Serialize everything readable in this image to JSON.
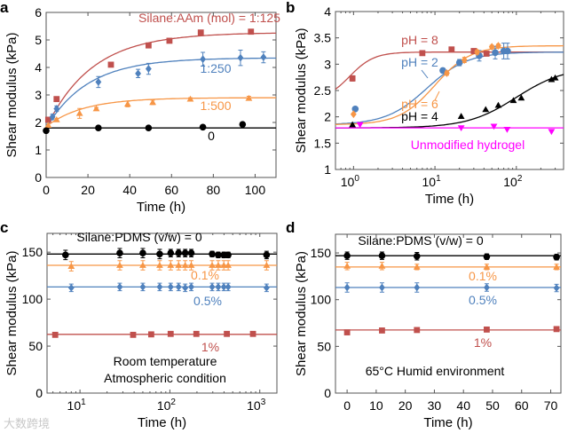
{
  "watermark": "大数跨境",
  "chart_data": [
    {
      "panel": "a",
      "type": "scatter+fit",
      "xlabel": "Time (h)",
      "ylabel": "Shear modulus (kPa)",
      "xscale": "linear",
      "xlim": [
        0,
        110
      ],
      "ylim": [
        0,
        6
      ],
      "xticks": [
        0,
        20,
        40,
        60,
        80,
        100
      ],
      "xticklabels": [
        "0",
        "20",
        "40",
        "60",
        "80",
        "100"
      ],
      "yticks": [
        0,
        1,
        2,
        3,
        4,
        5,
        6
      ],
      "yticklabels": [
        "0",
        "1",
        "2",
        "3",
        "4",
        "5",
        "6"
      ],
      "annotations": [
        {
          "text": "Silane:AAm (mol) = 1:125",
          "color": "#c0504d"
        },
        {
          "text": "1:250",
          "color": "#4f81bd"
        },
        {
          "text": "1:500",
          "color": "#f79646"
        },
        {
          "text": "0",
          "color": "#000000"
        }
      ],
      "series": [
        {
          "name": "1:125",
          "color": "#c0504d",
          "marker": "square",
          "points": [
            [
              1,
              2.1,
              0
            ],
            [
              5,
              2.85,
              0
            ],
            [
              31,
              4.1,
              0
            ],
            [
              49,
              4.8,
              0
            ],
            [
              59,
              4.97,
              0.08
            ],
            [
              74,
              5.27,
              0
            ],
            [
              98,
              5.3,
              0
            ]
          ],
          "fit": {
            "model": "exp_rise",
            "y0": 1.8,
            "y1": 5.27,
            "tau": 22
          }
        },
        {
          "name": "1:250",
          "color": "#4f81bd",
          "marker": "diamond",
          "points": [
            [
              3,
              2.2,
              0.1
            ],
            [
              5,
              2.5,
              0.1
            ],
            [
              25,
              3.47,
              0.2
            ],
            [
              44,
              3.78,
              0.15
            ],
            [
              49,
              3.95,
              0.2
            ],
            [
              75,
              4.3,
              0.25
            ],
            [
              93,
              4.35,
              0.28
            ],
            [
              104,
              4.37,
              0.2
            ]
          ],
          "fit": {
            "model": "exp_rise",
            "y0": 1.8,
            "y1": 4.35,
            "tau": 20
          }
        },
        {
          "name": "1:500",
          "color": "#f79646",
          "marker": "triangle",
          "points": [
            [
              1,
              1.9,
              0
            ],
            [
              5,
              2.1,
              0.05
            ],
            [
              16,
              2.33,
              0.18
            ],
            [
              24,
              2.5,
              0.05
            ],
            [
              39,
              2.67,
              0.1
            ],
            [
              51,
              2.73,
              0.08
            ],
            [
              69,
              2.85,
              0.05
            ],
            [
              97,
              2.88,
              0.07
            ]
          ],
          "fit": {
            "model": "exp_rise",
            "y0": 1.85,
            "y1": 2.9,
            "tau": 18
          }
        },
        {
          "name": "0",
          "color": "#000000",
          "marker": "circle",
          "points": [
            [
              0,
              1.7,
              0
            ],
            [
              25,
              1.8,
              0
            ],
            [
              49,
              1.8,
              0
            ],
            [
              75,
              1.83,
              0
            ],
            [
              94,
              1.93,
              0
            ]
          ],
          "fit": {
            "model": "constant",
            "y": 1.8
          }
        }
      ]
    },
    {
      "panel": "b",
      "type": "scatter+fit",
      "xlabel": "Time (h)",
      "ylabel": "Shear modulus (kPa)",
      "xscale": "log",
      "xlim": [
        0.6,
        380
      ],
      "ylim": [
        1,
        4
      ],
      "xticks": [
        1,
        10,
        100
      ],
      "xticklabels": [
        "10",
        "10",
        "10"
      ],
      "xtickexponents": [
        "0",
        "1",
        "2"
      ],
      "yticks": [
        1,
        1.5,
        2,
        2.5,
        3,
        3.5,
        4
      ],
      "yticklabels": [
        "1",
        "1.5",
        "2",
        "2.5",
        "3",
        "3.5",
        "4"
      ],
      "annotations": [
        {
          "text": "pH = 8",
          "color": "#c0504d"
        },
        {
          "text": "pH = 2",
          "color": "#4f81bd"
        },
        {
          "text": "pH = 6",
          "color": "#f79646"
        },
        {
          "text": "pH = 4",
          "color": "#000000"
        },
        {
          "text": "Unmodified hydrogel",
          "color": "#ff00ff"
        }
      ],
      "series": [
        {
          "name": "pH = 8",
          "color": "#c0504d",
          "marker": "square",
          "points": [
            [
              0.97,
              2.73,
              0.05
            ],
            [
              7,
              3.21,
              0
            ],
            [
              16,
              3.28,
              0
            ],
            [
              30,
              3.25,
              0
            ],
            [
              43,
              3.2,
              0
            ]
          ],
          "fit": {
            "model": "logistic_log10",
            "y0": 2.3,
            "y1": 3.23,
            "mid": -0.05,
            "width": 0.15
          }
        },
        {
          "name": "pH = 2",
          "color": "#4f81bd",
          "marker": "circle",
          "points": [
            [
              1.05,
              2.15,
              0
            ],
            [
              12.5,
              2.88,
              0.04
            ],
            [
              20,
              3.03,
              0.06
            ],
            [
              35,
              3.16,
              0.1
            ],
            [
              55,
              3.22,
              0.12
            ],
            [
              70,
              3.25,
              0.15
            ],
            [
              78,
              3.25,
              0.15
            ]
          ],
          "fit": {
            "model": "logistic_log10",
            "y0": 1.85,
            "y1": 3.23,
            "mid": 0.9,
            "width": 0.25
          }
        },
        {
          "name": "pH = 6",
          "color": "#f79646",
          "marker": "diamond",
          "points": [
            [
              1,
              2.05,
              0
            ],
            [
              14,
              2.83,
              0.04
            ],
            [
              23,
              3.08,
              0.05
            ],
            [
              33,
              3.23,
              0.04
            ],
            [
              50,
              3.33,
              0.03
            ],
            [
              60,
              3.35,
              0.03
            ]
          ],
          "fit": {
            "model": "logistic_log10",
            "y0": 1.85,
            "y1": 3.35,
            "mid": 1.0,
            "width": 0.22
          }
        },
        {
          "name": "pH = 4",
          "color": "#000000",
          "marker": "triangle",
          "points": [
            [
              0.97,
              1.85,
              0
            ],
            [
              21,
              2.01,
              0
            ],
            [
              42,
              2.14,
              0
            ],
            [
              60,
              2.22,
              0
            ],
            [
              92,
              2.31,
              0
            ],
            [
              115,
              2.36,
              0
            ],
            [
              270,
              2.71,
              0
            ],
            [
              300,
              2.74,
              0
            ]
          ],
          "fit": {
            "model": "logistic_log10",
            "y0": 1.79,
            "y1": 2.95,
            "mid": 2.0,
            "width": 0.3
          }
        },
        {
          "name": "Unmodified hydrogel",
          "color": "#ff00ff",
          "marker": "triangle-down",
          "points": [
            [
              1.2,
              1.85,
              0
            ],
            [
              21,
              1.79,
              0
            ],
            [
              53,
              1.82,
              0
            ],
            [
              77,
              1.76,
              0
            ],
            [
              270,
              1.72,
              0
            ]
          ],
          "fit": {
            "model": "constant",
            "y": 1.79
          }
        }
      ]
    },
    {
      "panel": "c",
      "type": "scatter+fit",
      "xlabel": "Time (h)",
      "ylabel": "Shear modulus (kPa)",
      "xscale": "log",
      "xlim": [
        4.3,
        1550
      ],
      "ylim": [
        0,
        170
      ],
      "xticks": [
        10,
        100,
        1000
      ],
      "xticklabels": [
        "10",
        "10",
        "10"
      ],
      "xtickexponents": [
        "1",
        "2",
        "3"
      ],
      "yticks": [
        0,
        50,
        100,
        150
      ],
      "yticklabels": [
        "0",
        "50",
        "100",
        "150"
      ],
      "annotations": [
        {
          "text": "Silane:PDMS (v/w) = 0",
          "color": "#000000"
        },
        {
          "text": "0.1%",
          "color": "#f79646"
        },
        {
          "text": "0.5%",
          "color": "#4f81bd"
        },
        {
          "text": "1%",
          "color": "#c0504d"
        },
        {
          "text": "Room temperature",
          "color": "#000000"
        },
        {
          "text": "Atmospheric condition",
          "color": "#000000"
        }
      ],
      "series": [
        {
          "name": "0",
          "color": "#000000",
          "marker": "circle",
          "points": [
            [
              6.9,
              147,
              5
            ],
            [
              27.7,
              149,
              5
            ],
            [
              50,
              149,
              5
            ],
            [
              77,
              148,
              5
            ],
            [
              102,
              149,
              4
            ],
            [
              125,
              149,
              4
            ],
            [
              148,
              149,
              4
            ],
            [
              173,
              149,
              4
            ],
            [
              295,
              148,
              3
            ],
            [
              345,
              147,
              3
            ],
            [
              398,
              147,
              3
            ],
            [
              445,
              147,
              3
            ],
            [
              1190,
              147,
              4
            ]
          ],
          "fit": {
            "model": "constant",
            "y": 148
          }
        },
        {
          "name": "0.1%",
          "color": "#f79646",
          "marker": "triangle",
          "points": [
            [
              8,
              135,
              5
            ],
            [
              27.7,
              136,
              5
            ],
            [
              50,
              136,
              5
            ],
            [
              77,
              136,
              5
            ],
            [
              102,
              136,
              5
            ],
            [
              125,
              136,
              5
            ],
            [
              148,
              136,
              5
            ],
            [
              173,
              136,
              5
            ],
            [
              295,
              136,
              5
            ],
            [
              345,
              136,
              5
            ],
            [
              398,
              136,
              5
            ],
            [
              445,
              136,
              5
            ],
            [
              1190,
              136,
              5
            ]
          ],
          "fit": {
            "model": "constant",
            "y": 136
          }
        },
        {
          "name": "0.5%",
          "color": "#4f81bd",
          "marker": "diamond",
          "points": [
            [
              8,
              112,
              4
            ],
            [
              27.7,
              113,
              4
            ],
            [
              50,
              113,
              4
            ],
            [
              77,
              113,
              4
            ],
            [
              102,
              113,
              4
            ],
            [
              125,
              113,
              4
            ],
            [
              148,
              112,
              4
            ],
            [
              173,
              113,
              4
            ],
            [
              295,
              113,
              4
            ],
            [
              345,
              113,
              4
            ],
            [
              398,
              113,
              4
            ],
            [
              445,
              113,
              4
            ],
            [
              1190,
              112,
              4
            ]
          ],
          "fit": {
            "model": "constant",
            "y": 113
          }
        },
        {
          "name": "1%",
          "color": "#c0504d",
          "marker": "square",
          "points": [
            [
              5.3,
              62,
              0
            ],
            [
              39,
              62,
              0
            ],
            [
              62,
              62.5,
              0
            ],
            [
              102,
              63,
              0
            ],
            [
              197,
              63,
              0
            ],
            [
              430,
              63,
              0
            ],
            [
              840,
              63,
              0
            ]
          ],
          "fit": {
            "model": "constant",
            "y": 62.5
          }
        }
      ]
    },
    {
      "panel": "d",
      "type": "scatter+fit",
      "xlabel": "Time (h)",
      "ylabel": "Shear modulus (kPa)",
      "xscale": "linear",
      "xlim": [
        -4,
        73.5
      ],
      "ylim": [
        0,
        170
      ],
      "xticks": [
        0,
        10,
        20,
        30,
        40,
        50,
        60,
        70
      ],
      "xticklabels": [
        "0",
        "10",
        "20",
        "30",
        "40",
        "50",
        "60",
        "70"
      ],
      "yticks": [
        0,
        50,
        100,
        150
      ],
      "yticklabels": [
        "0",
        "50",
        "100",
        "150"
      ],
      "annotations": [
        {
          "text": "Silane:PDMS (v/w) = 0",
          "color": "#000000"
        },
        {
          "text": "0.1%",
          "color": "#f79646"
        },
        {
          "text": "0.5%",
          "color": "#4f81bd"
        },
        {
          "text": "1%",
          "color": "#c0504d"
        },
        {
          "text": "65°C Humid environment",
          "color": "#000000"
        }
      ],
      "series": [
        {
          "name": "0",
          "color": "#000000",
          "marker": "circle",
          "points": [
            [
              0,
              147,
              4
            ],
            [
              12,
              147,
              4
            ],
            [
              24,
              146.5,
              4
            ],
            [
              48,
              146,
              3
            ],
            [
              72,
              145.5,
              3
            ]
          ],
          "fit": {
            "model": "constant",
            "y": 147
          }
        },
        {
          "name": "0.1%",
          "color": "#f79646",
          "marker": "triangle",
          "points": [
            [
              0,
              136,
              4
            ],
            [
              12,
              136,
              4
            ],
            [
              24,
              135,
              3
            ],
            [
              48,
              135,
              3
            ],
            [
              72,
              135,
              3
            ]
          ],
          "fit": {
            "model": "constant",
            "y": 135
          }
        },
        {
          "name": "0.5%",
          "color": "#4f81bd",
          "marker": "diamond",
          "points": [
            [
              0,
              113,
              5
            ],
            [
              12,
              113,
              5
            ],
            [
              24,
              113,
              5
            ],
            [
              48,
              113,
              4
            ],
            [
              72,
              112.5,
              4
            ]
          ],
          "fit": {
            "model": "constant",
            "y": 113
          }
        },
        {
          "name": "1%",
          "color": "#c0504d",
          "marker": "square",
          "points": [
            [
              0,
              65,
              0
            ],
            [
              12,
              67,
              0
            ],
            [
              24,
              67.5,
              0
            ],
            [
              48,
              68,
              0
            ],
            [
              72,
              68.5,
              0
            ]
          ],
          "fit": {
            "model": "constant",
            "y": 67.5
          }
        }
      ]
    }
  ]
}
